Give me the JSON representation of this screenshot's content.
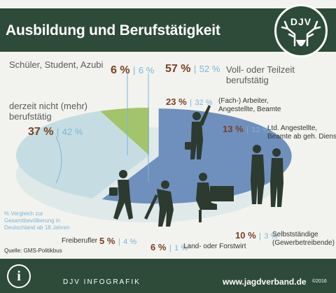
{
  "header": {
    "title": "Ausbildung und Berufstätigkeit",
    "logo_text": "DJV",
    "logo_icon": "deer-antler-icon"
  },
  "chart_data": {
    "type": "pie",
    "title": "Ausbildung und Berufstätigkeit",
    "unit": "%",
    "note": "% Vergleich zur Gesamtbevölkerung in Deutschland ab 18 Jahren",
    "source": "Quelle: GMS-Politikbus",
    "slices": [
      {
        "label": "Schüler, Student, Azubi",
        "value": 6,
        "reference": 6,
        "pct_text": "6 %",
        "ref_text": "6 %",
        "color": "#a3c46a",
        "exploded": false
      },
      {
        "label": "Voll- oder Teilzeit berufstätig",
        "value": 57,
        "reference": 52,
        "pct_text": "57 %",
        "ref_text": "52 %",
        "color": "#6f8fbd",
        "exploded": true,
        "subgroups": [
          {
            "label": "(Fach-) Arbeiter, Angestellte, Beamte",
            "value": 23,
            "reference": 32,
            "pct_text": "23 %",
            "ref_text": "32 %"
          },
          {
            "label": "Ltd. Angestellte, Beamte ab geh. Dienst",
            "value": 13,
            "reference": 12,
            "pct_text": "13 %",
            "ref_text": "12 %"
          },
          {
            "label": "Selbstständige (Gewerbetreibende)",
            "value": 10,
            "reference": 3,
            "pct_text": "10 %",
            "ref_text": "3 %"
          },
          {
            "label": "Land- oder Forstwirt",
            "value": 6,
            "reference": 1,
            "pct_text": "6 %",
            "ref_text": "1 %"
          },
          {
            "label": "Freiberufler",
            "value": 5,
            "reference": 4,
            "pct_text": "5 %",
            "ref_text": "4 %"
          }
        ]
      },
      {
        "label": "derzeit nicht (mehr) berufstätig",
        "value": 37,
        "reference": 42,
        "pct_text": "37 %",
        "ref_text": "42 %",
        "color": "#c5dde2",
        "exploded": false
      }
    ]
  },
  "labels": {
    "schueler": "Schüler, Student, Azubi",
    "voll_1": "Voll- oder Teilzeit",
    "voll_2": "berufstätig",
    "nicht_1": "derzeit nicht (mehr)",
    "nicht_2": "berufstätig",
    "arbeiter_1": "(Fach-) Arbeiter,",
    "arbeiter_2": "Angestellte, Beamte",
    "ltd_1": "Ltd. Angestellte,",
    "ltd_2": "Beamte ab geh. Dienst",
    "selbst_1": "Selbstständige",
    "selbst_2": "(Gewerbetreibende)",
    "land": "Land- oder Forstwirt",
    "frei": "Freiberufler",
    "separator": "|"
  },
  "footer": {
    "brand": "DJV INFOGRAFIK",
    "url": "www.jagdverband.de",
    "year": "©2016",
    "info_icon": "info-icon",
    "info_glyph": "i"
  },
  "colors": {
    "header_bg": "#2e4a38",
    "pct_brown": "#7a3f24",
    "ref_blue": "#7fb3d8",
    "slice_blue": "#6f8fbd",
    "slice_green": "#a3c46a",
    "slice_light": "#c5dde2"
  }
}
